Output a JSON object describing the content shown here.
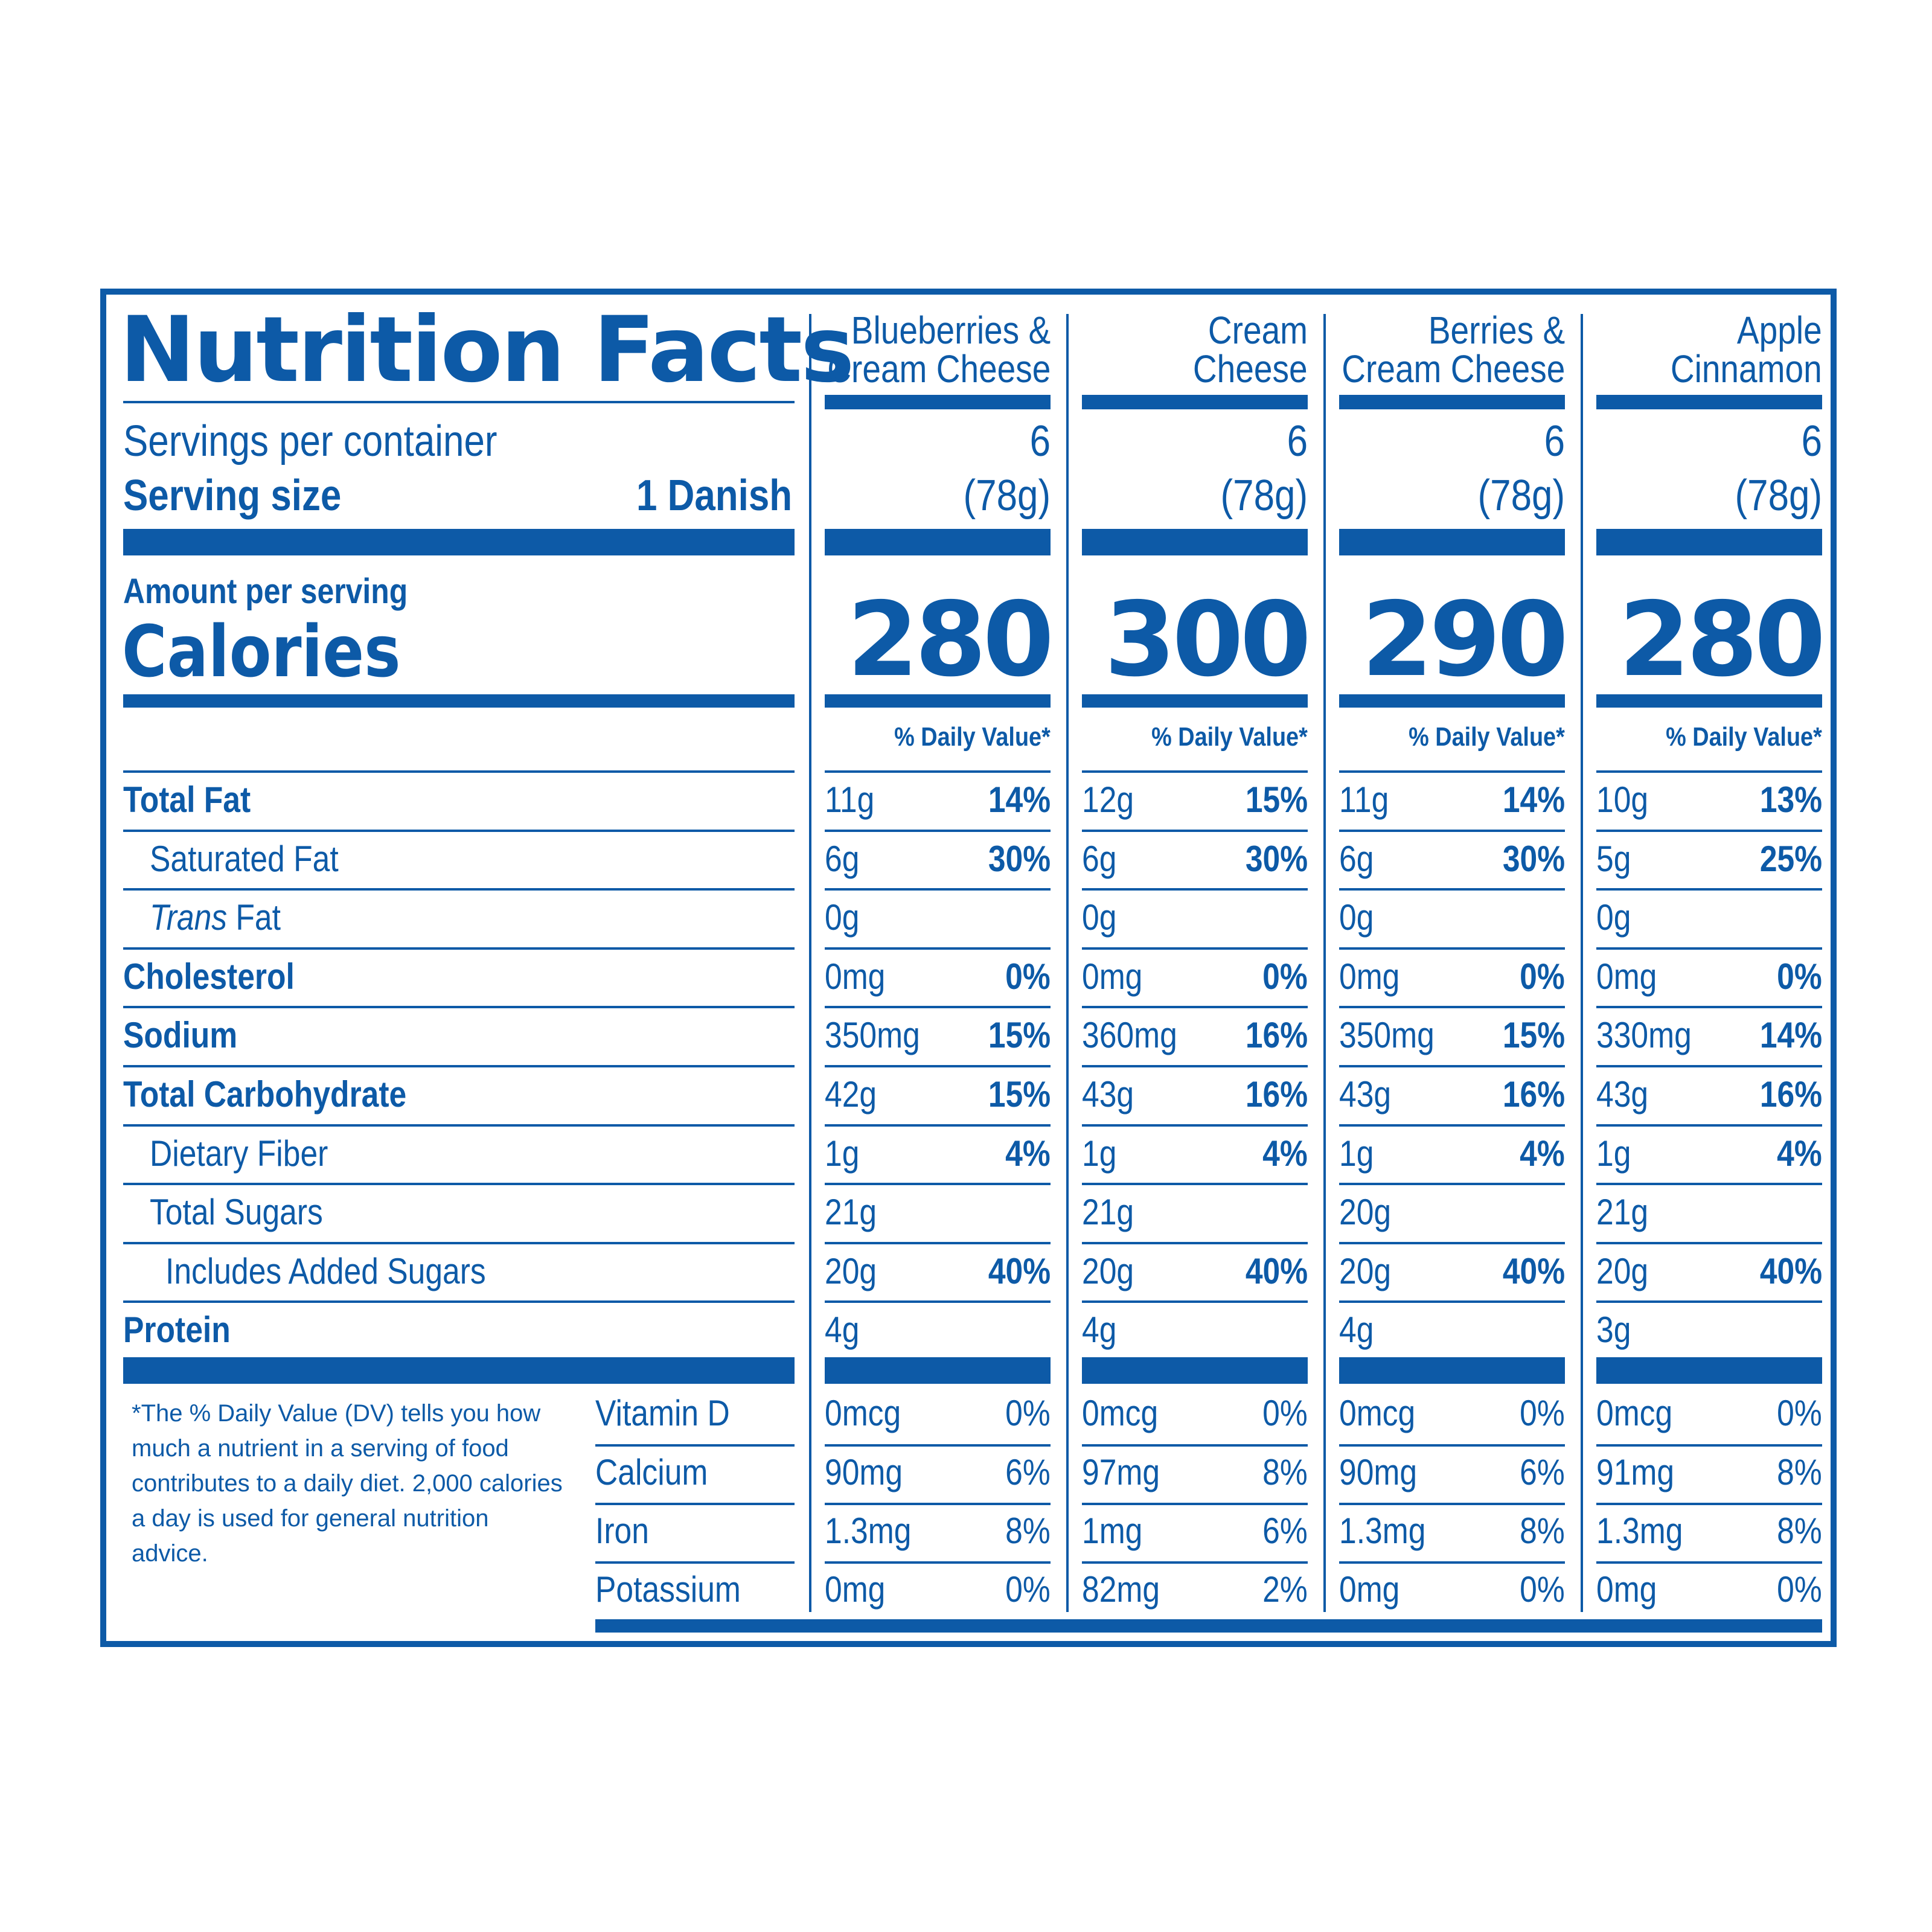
{
  "title": "Nutrition Facts",
  "servings_per_container_label": "Servings per container",
  "serving_size_label": "Serving size",
  "serving_size_value": "1 Danish",
  "amount_per_serving_label": "Amount per serving",
  "calories_label": "Calories",
  "daily_value_label": "% Daily Value*",
  "nutrient_labels": {
    "total_fat": "Total Fat",
    "saturated_fat": "Saturated Fat",
    "trans_fat_italic": "Trans",
    "trans_fat_rest": " Fat",
    "cholesterol": "Cholesterol",
    "sodium": "Sodium",
    "total_carbohydrate": "Total Carbohydrate",
    "dietary_fiber": "Dietary Fiber",
    "total_sugars": "Total Sugars",
    "added_sugars": "Includes Added Sugars",
    "protein": "Protein",
    "vitamin_d": "Vitamin D",
    "calcium": "Calcium",
    "iron": "Iron",
    "potassium": "Potassium"
  },
  "footnote": "*The % Daily Value (DV) tells you how much a nutrient in a serving of food contributes to a daily diet. 2,000 calories a day is used for general nutrition advice.",
  "products": [
    {
      "name_line1": "Blueberries &",
      "name_line2": "Cream Cheese",
      "servings": "6",
      "serving_size": "(78g)",
      "calories": "280",
      "total_fat": {
        "amount": "11g",
        "dv": "14%"
      },
      "saturated_fat": {
        "amount": "6g",
        "dv": "30%"
      },
      "trans_fat": {
        "amount": "0g",
        "dv": ""
      },
      "cholesterol": {
        "amount": "0mg",
        "dv": "0%"
      },
      "sodium": {
        "amount": "350mg",
        "dv": "15%"
      },
      "total_carbohydrate": {
        "amount": "42g",
        "dv": "15%"
      },
      "dietary_fiber": {
        "amount": "1g",
        "dv": "4%"
      },
      "total_sugars": {
        "amount": "21g",
        "dv": ""
      },
      "added_sugars": {
        "amount": "20g",
        "dv": "40%"
      },
      "protein": {
        "amount": "4g",
        "dv": ""
      },
      "vitamin_d": {
        "amount": "0mcg",
        "dv": "0%"
      },
      "calcium": {
        "amount": "90mg",
        "dv": "6%"
      },
      "iron": {
        "amount": "1.3mg",
        "dv": "8%"
      },
      "potassium": {
        "amount": "0mg",
        "dv": "0%"
      }
    },
    {
      "name_line1": "Cream",
      "name_line2": "Cheese",
      "servings": "6",
      "serving_size": "(78g)",
      "calories": "300",
      "total_fat": {
        "amount": "12g",
        "dv": "15%"
      },
      "saturated_fat": {
        "amount": "6g",
        "dv": "30%"
      },
      "trans_fat": {
        "amount": "0g",
        "dv": ""
      },
      "cholesterol": {
        "amount": "0mg",
        "dv": "0%"
      },
      "sodium": {
        "amount": "360mg",
        "dv": "16%"
      },
      "total_carbohydrate": {
        "amount": "43g",
        "dv": "16%"
      },
      "dietary_fiber": {
        "amount": "1g",
        "dv": "4%"
      },
      "total_sugars": {
        "amount": "21g",
        "dv": ""
      },
      "added_sugars": {
        "amount": "20g",
        "dv": "40%"
      },
      "protein": {
        "amount": "4g",
        "dv": ""
      },
      "vitamin_d": {
        "amount": "0mcg",
        "dv": "0%"
      },
      "calcium": {
        "amount": "97mg",
        "dv": "8%"
      },
      "iron": {
        "amount": "1mg",
        "dv": "6%"
      },
      "potassium": {
        "amount": "82mg",
        "dv": "2%"
      }
    },
    {
      "name_line1": "Berries &",
      "name_line2": "Cream Cheese",
      "servings": "6",
      "serving_size": "(78g)",
      "calories": "290",
      "total_fat": {
        "amount": "11g",
        "dv": "14%"
      },
      "saturated_fat": {
        "amount": "6g",
        "dv": "30%"
      },
      "trans_fat": {
        "amount": "0g",
        "dv": ""
      },
      "cholesterol": {
        "amount": "0mg",
        "dv": "0%"
      },
      "sodium": {
        "amount": "350mg",
        "dv": "15%"
      },
      "total_carbohydrate": {
        "amount": "43g",
        "dv": "16%"
      },
      "dietary_fiber": {
        "amount": "1g",
        "dv": "4%"
      },
      "total_sugars": {
        "amount": "20g",
        "dv": ""
      },
      "added_sugars": {
        "amount": "20g",
        "dv": "40%"
      },
      "protein": {
        "amount": "4g",
        "dv": ""
      },
      "vitamin_d": {
        "amount": "0mcg",
        "dv": "0%"
      },
      "calcium": {
        "amount": "90mg",
        "dv": "6%"
      },
      "iron": {
        "amount": "1.3mg",
        "dv": "8%"
      },
      "potassium": {
        "amount": "0mg",
        "dv": "0%"
      }
    },
    {
      "name_line1": "Apple",
      "name_line2": "Cinnamon",
      "servings": "6",
      "serving_size": "(78g)",
      "calories": "280",
      "total_fat": {
        "amount": "10g",
        "dv": "13%"
      },
      "saturated_fat": {
        "amount": "5g",
        "dv": "25%"
      },
      "trans_fat": {
        "amount": "0g",
        "dv": ""
      },
      "cholesterol": {
        "amount": "0mg",
        "dv": "0%"
      },
      "sodium": {
        "amount": "330mg",
        "dv": "14%"
      },
      "total_carbohydrate": {
        "amount": "43g",
        "dv": "16%"
      },
      "dietary_fiber": {
        "amount": "1g",
        "dv": "4%"
      },
      "total_sugars": {
        "amount": "21g",
        "dv": ""
      },
      "added_sugars": {
        "amount": "20g",
        "dv": "40%"
      },
      "protein": {
        "amount": "3g",
        "dv": ""
      },
      "vitamin_d": {
        "amount": "0mcg",
        "dv": "0%"
      },
      "calcium": {
        "amount": "91mg",
        "dv": "8%"
      },
      "iron": {
        "amount": "1.3mg",
        "dv": "8%"
      },
      "potassium": {
        "amount": "0mg",
        "dv": "0%"
      }
    }
  ]
}
